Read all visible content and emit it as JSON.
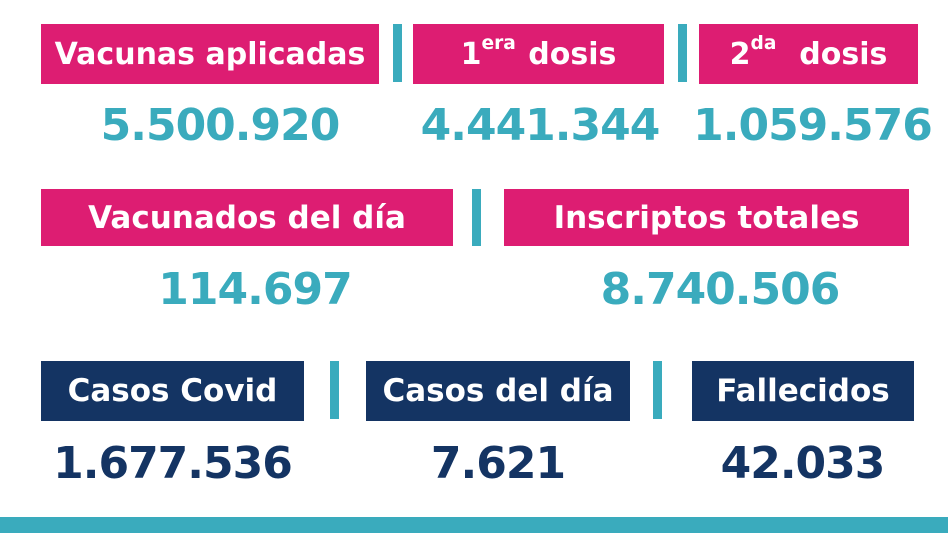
{
  "vaccines": {
    "applied": {
      "label": "Vacunas aplicadas",
      "value": "5.500.920"
    },
    "first_dose": {
      "label_sup": "era",
      "label_prefix": "1",
      "label_suffix": " dosis",
      "value": "4.441.344"
    },
    "second_dose": {
      "label_sup": "da",
      "label_prefix": "2",
      "label_suffix": "  dosis",
      "value": "1.059.576"
    }
  },
  "daily": {
    "vaccinated_today": {
      "label": "Vacunados del día",
      "value": "114.697"
    },
    "registered_total": {
      "label": "Inscriptos totales",
      "value": "8.740.506"
    }
  },
  "covid": {
    "cases": {
      "label": "Casos Covid",
      "value": "1.677.536"
    },
    "cases_today": {
      "label": "Casos del día",
      "value": "7.621"
    },
    "deaths": {
      "label": "Fallecidos",
      "value": "42.033"
    }
  },
  "colors": {
    "pink": "#dd1d72",
    "navy": "#143463",
    "teal": "#3aabbd"
  }
}
